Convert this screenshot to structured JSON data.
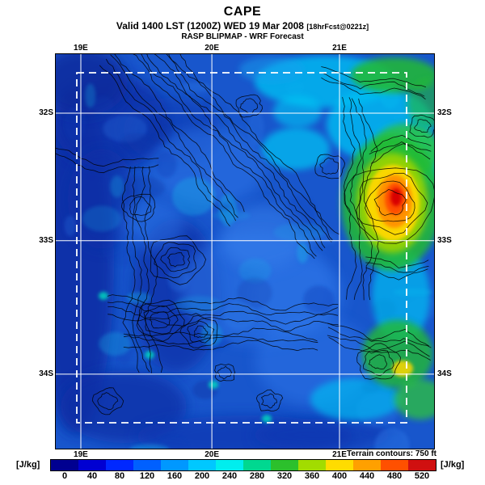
{
  "header": {
    "title": "CAPE",
    "valid_main": "Valid 1400 LST (1200Z) WED 19 Mar 2008 ",
    "valid_small": "[18hrFcst@0221z]",
    "model_line": "RASP BLIPMAP - WRF Forecast"
  },
  "map": {
    "lon_ticks": [
      {
        "label": "19E",
        "fx": 0.068
      },
      {
        "label": "20E",
        "fx": 0.413
      },
      {
        "label": "21E",
        "fx": 0.749
      }
    ],
    "lat_ticks": [
      {
        "label": "32S",
        "fy": 0.151
      },
      {
        "label": "33S",
        "fy": 0.473
      },
      {
        "label": "34S",
        "fy": 0.81
      }
    ],
    "terrain_note": "Terrain contours: 750 ft"
  },
  "colorbar": {
    "units_left": "[J/kg]",
    "units_right": "[J/kg]",
    "tick_values": [
      0,
      40,
      80,
      120,
      160,
      200,
      240,
      280,
      320,
      360,
      400,
      440,
      480,
      520
    ],
    "colors": [
      "#000090",
      "#0000d2",
      "#0028ff",
      "#0060ff",
      "#0098ff",
      "#00c8ff",
      "#00eeee",
      "#00d890",
      "#2cc02c",
      "#a2dc00",
      "#ffdc00",
      "#ffa000",
      "#ff5000",
      "#d01010"
    ]
  },
  "chart_data": {
    "type": "heatmap",
    "title": "CAPE",
    "subtitle": "Valid 1400 LST (1200Z) WED 19 Mar 2008 [18hrFcst@0221z]",
    "source": "RASP BLIPMAP - WRF Forecast",
    "units": "J/kg",
    "colorbar_ticks": [
      0,
      40,
      80,
      120,
      160,
      200,
      240,
      280,
      320,
      360,
      400,
      440,
      480,
      520
    ],
    "colorbar_colors": [
      "#000090",
      "#0000d2",
      "#0028ff",
      "#0060ff",
      "#0098ff",
      "#00c8ff",
      "#00eeee",
      "#00d890",
      "#2cc02c",
      "#a2dc00",
      "#ffdc00",
      "#ffa000",
      "#ff5000",
      "#d01010"
    ],
    "x_tick_labels": [
      "19E",
      "20E",
      "21E"
    ],
    "y_tick_labels": [
      "32S",
      "33S",
      "34S"
    ],
    "overlay_note": "Terrain contours: 750 ft",
    "annotations": [
      "white dashed rectangle marks inner model domain",
      "white solid graticule lines at labeled lon/lat",
      "black terrain contour lines overlaid"
    ],
    "value_features": [
      {
        "value_range": "480-520+",
        "color": "red-orange",
        "approx_location": "east-central, near 21.5E 33S"
      },
      {
        "value_range": "200-400",
        "color": "cyan-green-yellow",
        "approx_location": "northeast quadrant and along eastern edge"
      },
      {
        "value_range": "40-160",
        "color": "blue shades",
        "approx_location": "most of the domain (west and center)"
      },
      {
        "value_range": "0-40",
        "color": "dark blue",
        "approx_location": "scattered patches, far west and southwest"
      }
    ]
  }
}
